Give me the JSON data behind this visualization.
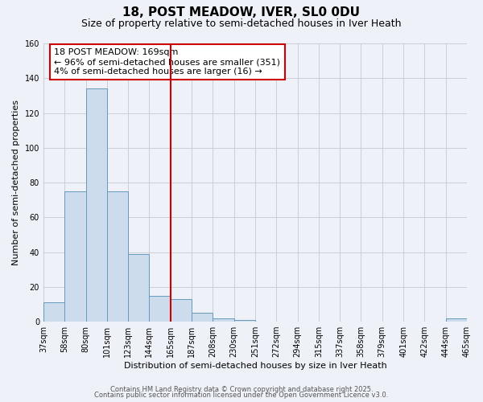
{
  "title": "18, POST MEADOW, IVER, SL0 0DU",
  "subtitle": "Size of property relative to semi-detached houses in Iver Heath",
  "xlabel": "Distribution of semi-detached houses by size in Iver Heath",
  "ylabel": "Number of semi-detached properties",
  "bar_values": [
    11,
    75,
    134,
    75,
    39,
    15,
    13,
    5,
    2,
    1,
    0,
    0,
    0,
    0,
    0,
    0,
    0,
    0,
    0,
    2
  ],
  "bin_labels": [
    "37sqm",
    "58sqm",
    "80sqm",
    "101sqm",
    "123sqm",
    "144sqm",
    "165sqm",
    "187sqm",
    "208sqm",
    "230sqm",
    "251sqm",
    "272sqm",
    "294sqm",
    "315sqm",
    "337sqm",
    "358sqm",
    "379sqm",
    "401sqm",
    "422sqm",
    "444sqm",
    "465sqm"
  ],
  "bar_color": "#ccdcec",
  "bar_edge_color": "#6699bb",
  "vline_color": "#cc0000",
  "annotation_title": "18 POST MEADOW: 169sqm",
  "annotation_line2": "← 96% of semi-detached houses are smaller (351)",
  "annotation_line3": "4% of semi-detached houses are larger (16) →",
  "annotation_box_facecolor": "#ffffff",
  "annotation_box_edgecolor": "#cc0000",
  "ylim": [
    0,
    160
  ],
  "yticks": [
    0,
    20,
    40,
    60,
    80,
    100,
    120,
    140,
    160
  ],
  "footer1": "Contains HM Land Registry data © Crown copyright and database right 2025.",
  "footer2": "Contains public sector information licensed under the Open Government Licence v3.0.",
  "bg_color": "#eef2f8",
  "grid_color": "#c8c8d0",
  "title_fontsize": 11,
  "subtitle_fontsize": 9,
  "axis_label_fontsize": 8,
  "tick_fontsize": 7,
  "annotation_fontsize": 8,
  "footer_fontsize": 6
}
